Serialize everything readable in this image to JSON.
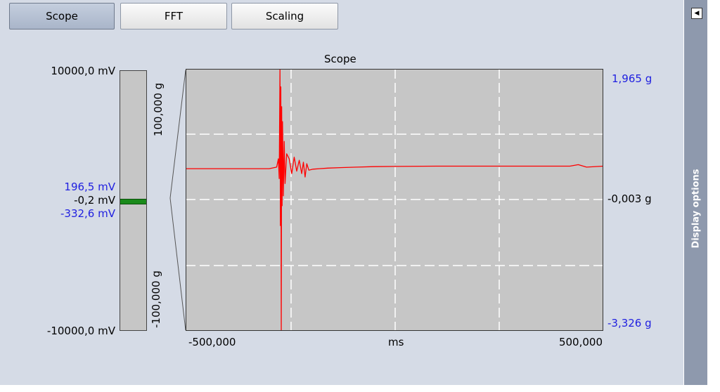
{
  "tabs": [
    {
      "label": "Scope",
      "active": true
    },
    {
      "label": "FFT",
      "active": false
    },
    {
      "label": "Scaling",
      "active": false
    }
  ],
  "side_panel": {
    "collapse_icon": "triangle-left-icon",
    "label": "Display options"
  },
  "voltage": {
    "max_label": "10000,0 mV",
    "min_label": "-10000,0 mV",
    "upper_label": "196,5 mV",
    "current_label": "-0,2 mV",
    "lower_label": "-332,6 mV",
    "level_fraction": 0.5
  },
  "g_range": {
    "top_label": "100,000 g",
    "bottom_label": "-100,000 g"
  },
  "chart_data": {
    "type": "line",
    "title": "Scope",
    "xlabel": "ms",
    "x_tick_labels": [
      "-500,000",
      "500,000"
    ],
    "xlim": [
      -500,
      500
    ],
    "ylim": [
      -3.326,
      1.965
    ],
    "right_axis_labels": {
      "top": "1,965 g",
      "middle": "-0,003 g",
      "bottom": "-3,326 g"
    },
    "grid": true,
    "series": [
      {
        "color": "#ff0000",
        "x": [
          -500,
          -300,
          -282,
          -278,
          -276,
          -274,
          -273,
          -272,
          -271,
          -270,
          -269,
          -268,
          -266,
          -264,
          -262,
          -258,
          -252,
          -246,
          -240,
          -234,
          -228,
          -222,
          -218,
          -214,
          -210,
          -205,
          -195,
          -180,
          -160,
          -130,
          -90,
          -50,
          0,
          100,
          200,
          300,
          420,
          440,
          460,
          500
        ],
        "y": [
          -0.05,
          -0.05,
          -0.02,
          0.15,
          -0.25,
          1.965,
          -1.2,
          1.6,
          -3.326,
          1.2,
          -0.8,
          0.9,
          -0.6,
          0.5,
          -0.35,
          0.25,
          0.15,
          -0.15,
          0.18,
          -0.1,
          0.12,
          -0.15,
          0.08,
          -0.22,
          0.05,
          -0.08,
          -0.06,
          -0.05,
          -0.04,
          -0.03,
          -0.02,
          -0.01,
          -0.005,
          0.0,
          0.0,
          0.0,
          0.0,
          0.03,
          -0.02,
          0.0
        ]
      }
    ]
  },
  "colors": {
    "plot_bg": "#c6c6c6",
    "grid": "#ffffff",
    "trace": "#ff0000",
    "level": "#1a8a1a",
    "blue_label": "#2020e0"
  }
}
